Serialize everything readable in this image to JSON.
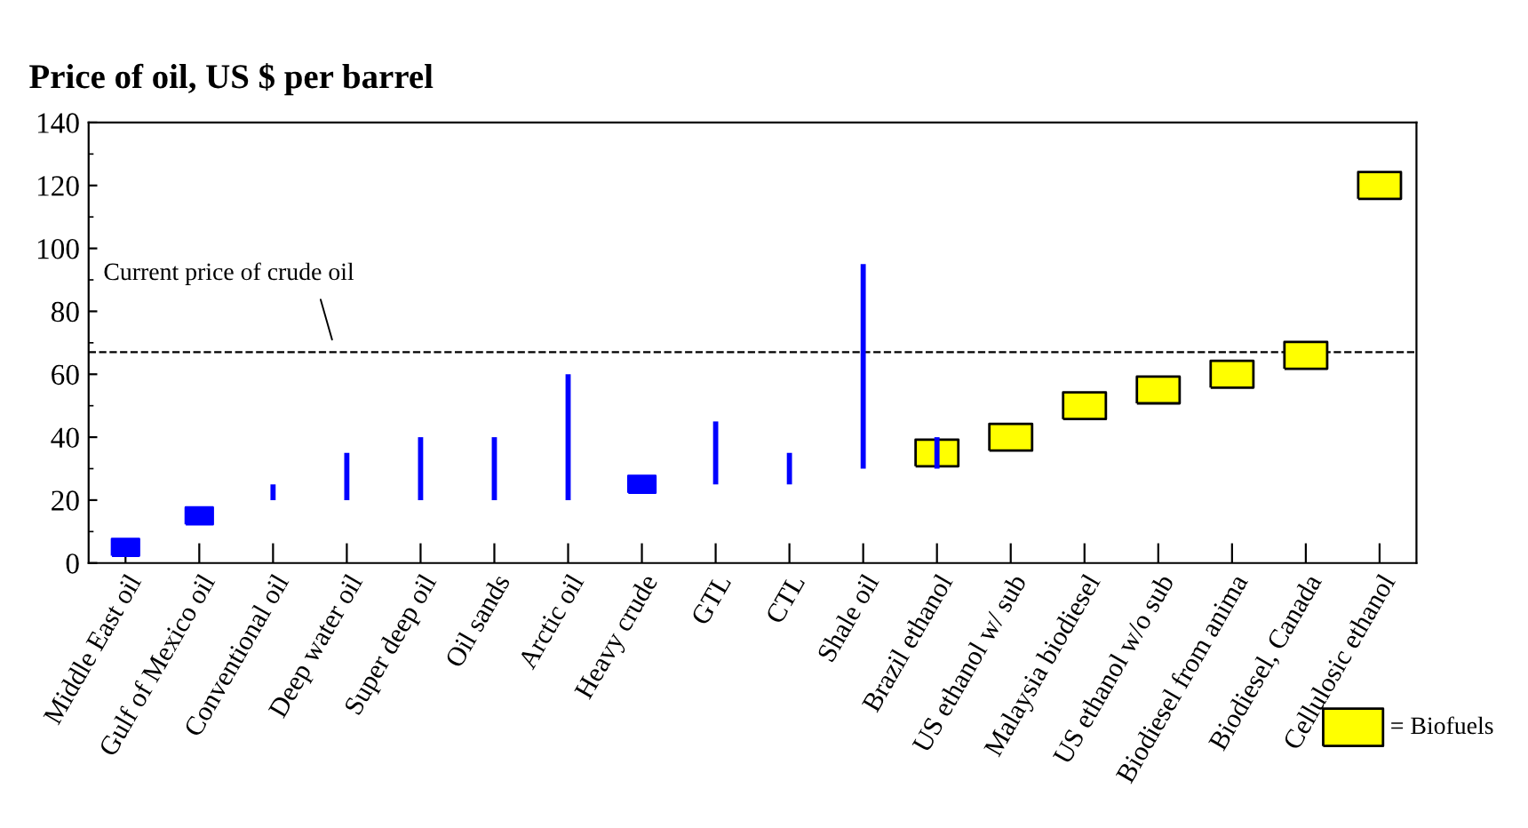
{
  "chart_data": {
    "type": "bar",
    "title": "Price of oil, US $ per barrel",
    "categories": [
      "Middle East oil",
      "Gulf of Mexico oil",
      "Conventional oil",
      "Deep water oil",
      "Super deep oil",
      "Oil sands",
      "Arctic oil",
      "Heavy crude",
      "GTL",
      "CTL",
      "Shale oil",
      "Brazil ethanol",
      "US ethanol w/ sub",
      "Malaysia biodiesel",
      "US ethanol w/o sub",
      "Biodiesel from anima",
      "Biodiesel, Canada",
      "Cellulosic ethanol"
    ],
    "series": [
      {
        "color": "#0000ff",
        "base": [
          null,
          null,
          20,
          20,
          20,
          20,
          20,
          null,
          25,
          25,
          30,
          30,
          null,
          null,
          null,
          null,
          null,
          null
        ],
        "values": [
          null,
          null,
          5,
          15,
          20,
          20,
          40,
          null,
          20,
          10,
          65,
          10,
          null,
          null,
          null,
          null,
          null,
          null
        ]
      },
      {
        "type": "scatter",
        "color": "#0000ff",
        "marker": "square",
        "values": [
          5,
          15,
          null,
          null,
          null,
          null,
          null,
          25,
          null,
          null,
          null,
          null,
          null,
          null,
          null,
          null,
          null,
          null
        ]
      },
      {
        "type": "scatter",
        "name": "= Biofuels",
        "color": "#ffff00",
        "marker": "square",
        "values": [
          null,
          null,
          null,
          null,
          null,
          null,
          null,
          null,
          null,
          null,
          null,
          35,
          40,
          50,
          55,
          60,
          66,
          120
        ]
      }
    ],
    "ylim": [
      0,
      140
    ],
    "yticks": [
      0,
      20,
      40,
      60,
      80,
      100,
      120,
      140
    ],
    "ref_lines": [
      {
        "axis": "y",
        "value": 67,
        "label": "Current price of crude oil",
        "color": "#000000",
        "line_style": "dashed"
      }
    ],
    "grid": false,
    "legend": "bottom right"
  }
}
